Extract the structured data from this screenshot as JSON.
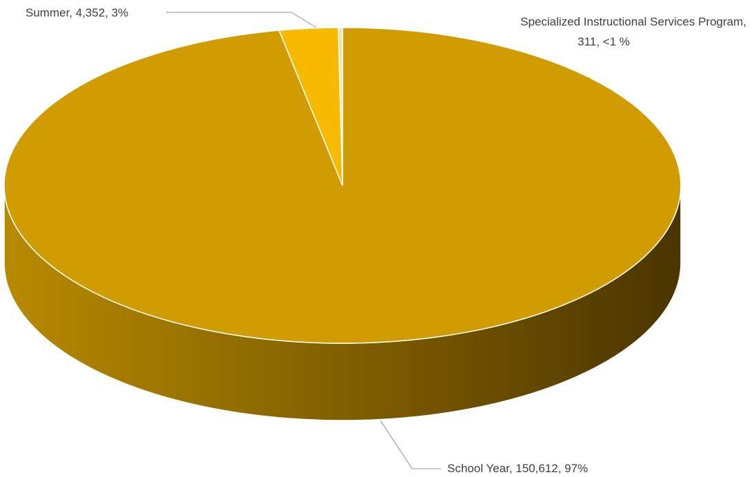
{
  "chart_data": {
    "type": "pie",
    "three_d": true,
    "title": "",
    "slices": [
      {
        "name": "School Year",
        "value": 150612,
        "percent_label": "97%",
        "color": "#D09C00",
        "label_line1": "School Year, 150,612, 97%",
        "label_line2": ""
      },
      {
        "name": "Summer",
        "value": 4352,
        "percent_label": "3%",
        "color": "#F7BA00",
        "label_line1": "Summer, 4,352, 3%",
        "label_line2": ""
      },
      {
        "name": "Specialized Instructional Services Program",
        "value": 311,
        "percent_label": "<1 %",
        "color": "#F2E3B0",
        "label_line1": "Specialized Instructional Services Program,",
        "label_line2": "311, <1 %"
      }
    ],
    "side_colors": {
      "light": "#B88A00",
      "dark": "#4A3500"
    },
    "leader_line_color": "#A6A6A6"
  }
}
